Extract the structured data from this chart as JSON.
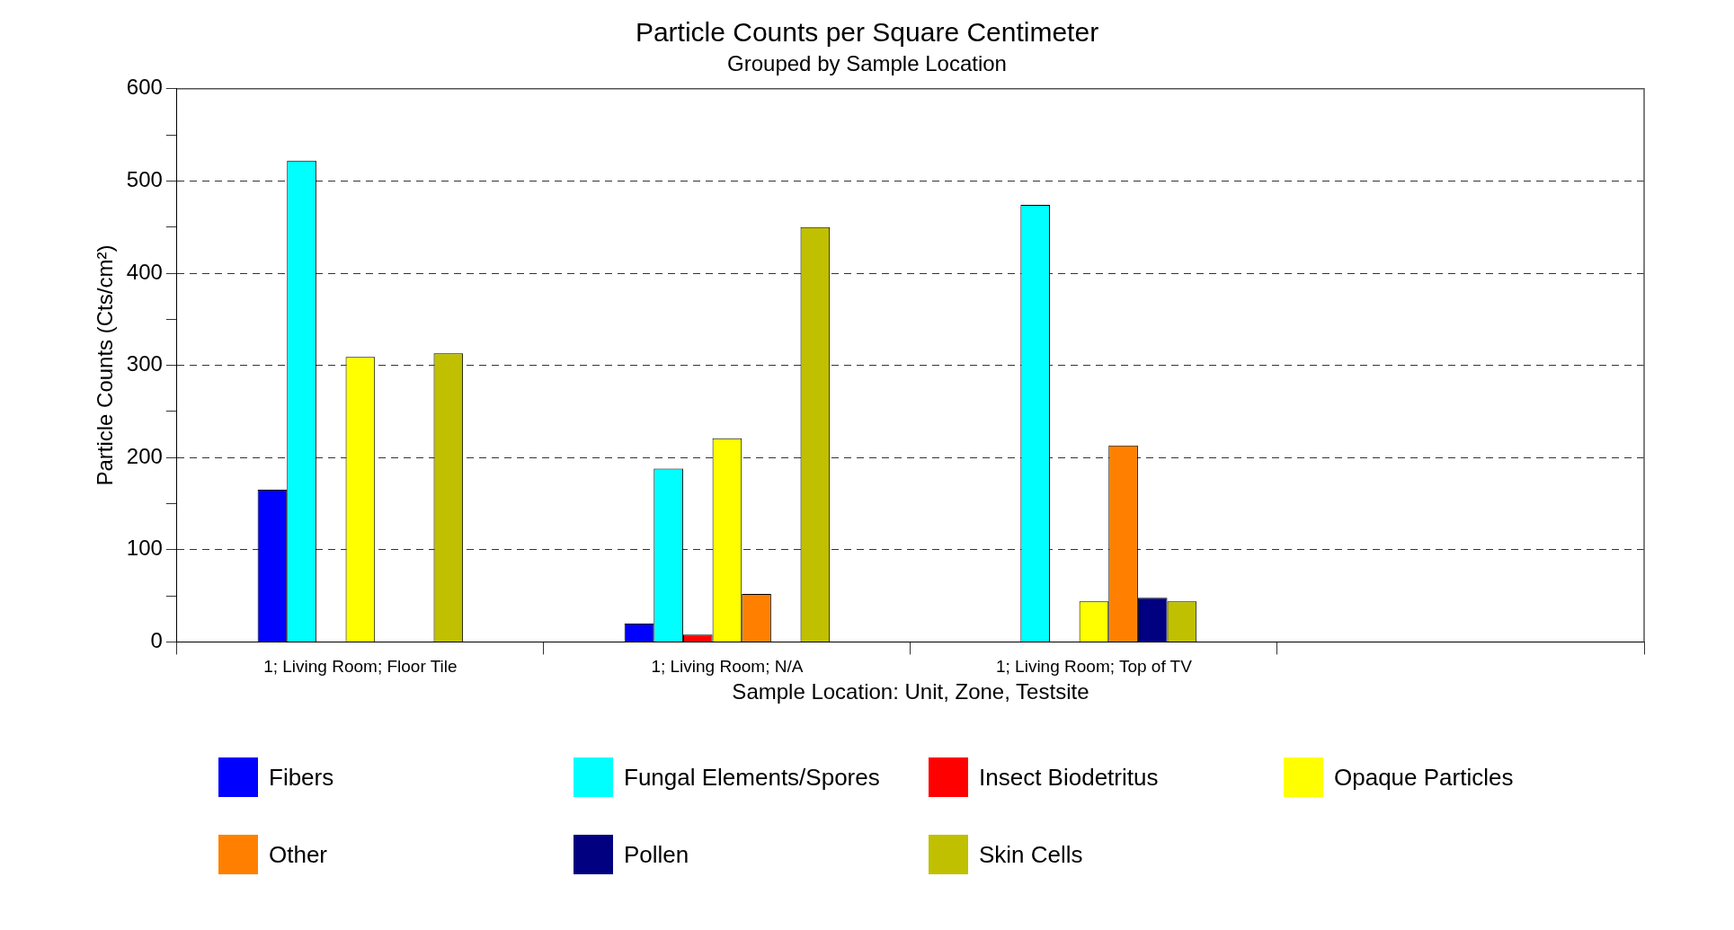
{
  "chart_data": {
    "type": "bar",
    "title": "Particle Counts per Square Centimeter",
    "subtitle": "Grouped by Sample Location",
    "xlabel": "Sample Location: Unit, Zone, Testsite",
    "ylabel": "Particle Counts (Cts/cm²)",
    "categories": [
      "1; Living Room; Floor Tile",
      "1; Living Room; N/A",
      "1; Living Room; Top of TV",
      null
    ],
    "series": [
      {
        "name": "Fibers",
        "color": "#0000ff",
        "values": [
          165,
          20,
          null,
          null
        ]
      },
      {
        "name": "Fungal Elements/Spores",
        "color": "#00ffff",
        "values": [
          522,
          188,
          474,
          null
        ]
      },
      {
        "name": "Insect Biodetritus",
        "color": "#ff0000",
        "values": [
          null,
          8,
          null,
          null
        ]
      },
      {
        "name": "Opaque Particles",
        "color": "#ffff00",
        "values": [
          309,
          221,
          44,
          null
        ]
      },
      {
        "name": "Other",
        "color": "#ff8000",
        "values": [
          null,
          52,
          213,
          null
        ]
      },
      {
        "name": "Pollen",
        "color": "#000080",
        "values": [
          null,
          null,
          48,
          null
        ]
      },
      {
        "name": "Skin Cells",
        "color": "#c0c000",
        "values": [
          313,
          450,
          44,
          null
        ]
      }
    ],
    "ylim": [
      0,
      600
    ],
    "yticks": [
      0,
      {
        "value": 50,
        "label": null
      },
      100,
      {
        "value": 150,
        "label": null
      },
      200,
      {
        "value": 250,
        "label": null
      },
      300,
      {
        "value": 350,
        "label": null
      },
      400,
      {
        "value": 450,
        "label": null
      },
      500,
      {
        "value": 550,
        "label": null
      },
      600
    ],
    "grid": "y",
    "legend": "bottom"
  }
}
